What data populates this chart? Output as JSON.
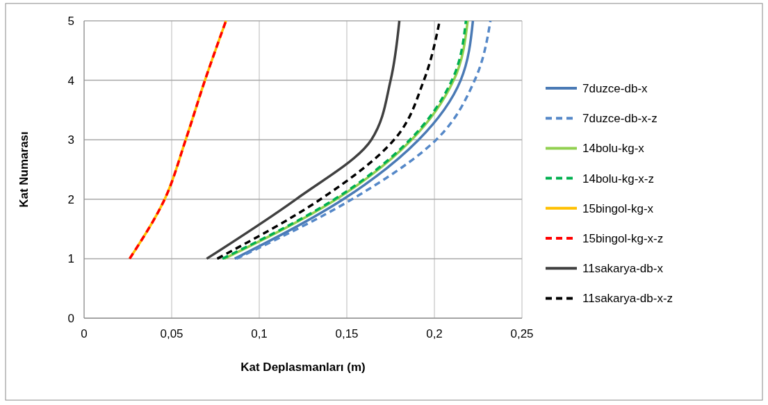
{
  "chart_data": {
    "type": "line",
    "xlabel": "Kat Deplasmanları (m)",
    "ylabel": "Kat Numarası",
    "xlim": [
      0,
      0.25
    ],
    "xticks": [
      0,
      {
        "value": 0.05,
        "label": "0,05"
      },
      {
        "value": 0.1,
        "label": "0,1"
      },
      {
        "value": 0.15,
        "label": "0,15"
      },
      {
        "value": 0.2,
        "label": "0,2"
      },
      {
        "value": 0.25,
        "label": "0,25"
      }
    ],
    "ylim": [
      0,
      5
    ],
    "yticks": [
      0,
      1,
      2,
      3,
      4,
      5
    ],
    "grid": true,
    "legend": "right",
    "series": [
      {
        "name": "7duzce-db-x",
        "color": "#4a7ab5",
        "line_style": "solid",
        "x": [
          0.086,
          0.148,
          0.191,
          0.215,
          0.222
        ],
        "values": [
          1,
          2,
          3,
          4,
          5
        ]
      },
      {
        "name": "7duzce-db-x-z",
        "color": "#5588c8",
        "line_style": "dashed",
        "x": [
          0.087,
          0.153,
          0.201,
          0.223,
          0.232
        ],
        "values": [
          1,
          2,
          3,
          4,
          5
        ]
      },
      {
        "name": "14bolu-kg-x",
        "color": "#92d050",
        "line_style": "solid",
        "x": [
          0.08,
          0.144,
          0.187,
          0.211,
          0.219
        ],
        "values": [
          1,
          2,
          3,
          4,
          5
        ]
      },
      {
        "name": "14bolu-kg-x-z",
        "color": "#00b050",
        "line_style": "dashed",
        "x": [
          0.079,
          0.143,
          0.186,
          0.21,
          0.218
        ],
        "values": [
          1,
          2,
          3,
          4,
          5
        ]
      },
      {
        "name": "15bingol-kg-x",
        "color": "#ffc000",
        "line_style": "solid",
        "x": [
          0.026,
          0.046,
          0.058,
          0.069,
          0.081
        ],
        "values": [
          1,
          2,
          3,
          4,
          5
        ]
      },
      {
        "name": "15bingol-kg-x-z",
        "color": "#ff0000",
        "line_style": "dashed",
        "x": [
          0.026,
          0.046,
          0.058,
          0.069,
          0.081
        ],
        "values": [
          1,
          2,
          3,
          4,
          5
        ]
      },
      {
        "name": "11sakarya-db-x",
        "color": "#404040",
        "line_style": "solid",
        "x": [
          0.07,
          0.121,
          0.164,
          0.175,
          0.18
        ],
        "values": [
          1,
          2,
          3,
          4,
          5
        ]
      },
      {
        "name": "11sakarya-db-x-z",
        "color": "#000000",
        "line_style": "dashed",
        "x": [
          0.076,
          0.135,
          0.177,
          0.194,
          0.203
        ],
        "values": [
          1,
          2,
          3,
          4,
          5
        ]
      }
    ]
  }
}
